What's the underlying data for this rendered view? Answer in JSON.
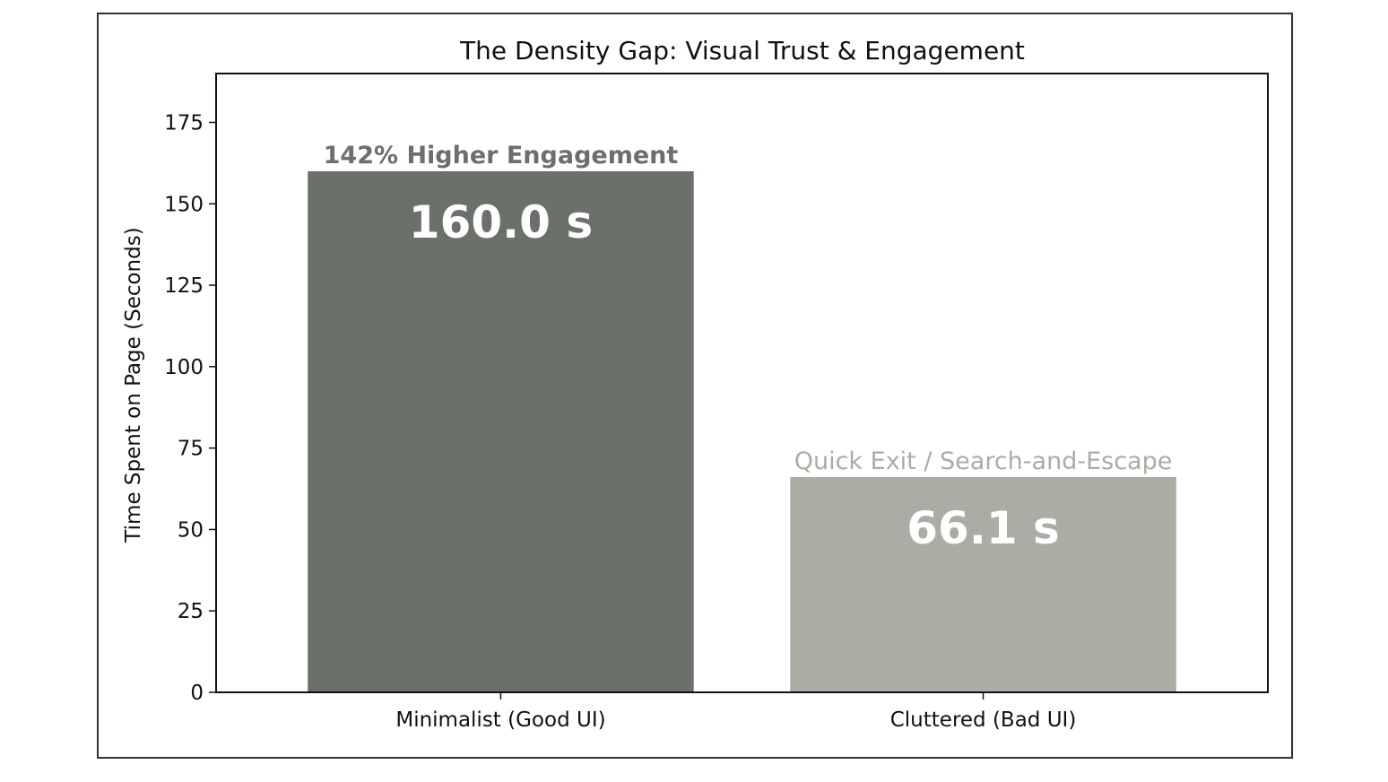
{
  "chart_data": {
    "type": "bar",
    "title": "The Density Gap: Visual Trust & Engagement",
    "xlabel": "",
    "ylabel": "Time Spent on Page (Seconds)",
    "ylim": [
      0,
      190
    ],
    "yticks": [
      0,
      25,
      50,
      75,
      100,
      125,
      150,
      175
    ],
    "categories": [
      "Minimalist (Good UI)",
      "Cluttered (Bad UI)"
    ],
    "values": [
      160.0,
      66.1
    ],
    "value_labels": [
      "160.0 s",
      "66.1 s"
    ],
    "annotations": [
      "142% Higher Engagement",
      "Quick Exit / Search-and-Escape"
    ],
    "colors": [
      "#6b706b",
      "#abada4"
    ],
    "annotation_colors": [
      "#6b706b",
      "#abada4"
    ],
    "grid": false,
    "legend": "none"
  }
}
